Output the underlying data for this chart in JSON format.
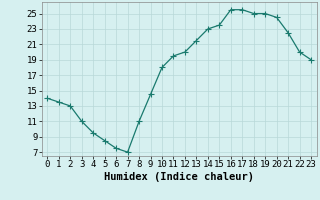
{
  "x": [
    0,
    1,
    2,
    3,
    4,
    5,
    6,
    7,
    8,
    9,
    10,
    11,
    12,
    13,
    14,
    15,
    16,
    17,
    18,
    19,
    20,
    21,
    22,
    23
  ],
  "y": [
    14,
    13.5,
    13,
    11,
    9.5,
    8.5,
    7.5,
    7,
    11,
    14.5,
    18,
    19.5,
    20,
    21.5,
    23,
    23.5,
    25.5,
    25.5,
    25,
    25,
    24.5,
    22.5,
    20,
    19
  ],
  "line_color": "#1a7a6e",
  "marker": "+",
  "marker_size": 4,
  "bg_color": "#d6f0f0",
  "grid_color": "#b8d8d8",
  "xlabel": "Humidex (Indice chaleur)",
  "xlim": [
    -0.5,
    23.5
  ],
  "ylim": [
    6.5,
    26.5
  ],
  "yticks": [
    7,
    9,
    11,
    13,
    15,
    17,
    19,
    21,
    23,
    25
  ],
  "xticks": [
    0,
    1,
    2,
    3,
    4,
    5,
    6,
    7,
    8,
    9,
    10,
    11,
    12,
    13,
    14,
    15,
    16,
    17,
    18,
    19,
    20,
    21,
    22,
    23
  ],
  "xlabel_fontsize": 7.5,
  "tick_fontsize": 6.5,
  "linewidth": 0.9,
  "marker_linewidth": 0.8
}
